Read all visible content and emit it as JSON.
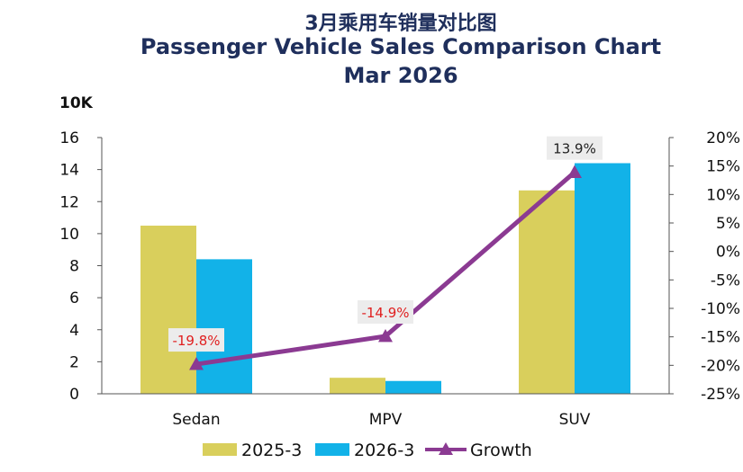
{
  "chart_data": {
    "type": "bar",
    "title_cn": "3月乘用车销量对比图",
    "title": "Passenger Vehicle Sales Comparison Chart",
    "subtitle": "Mar 2026",
    "y_unit": "10K",
    "categories": [
      "Sedan",
      "MPV",
      "SUV"
    ],
    "ylim": [
      0,
      16
    ],
    "yticks": [
      "0",
      "2",
      "4",
      "6",
      "8",
      "10",
      "12",
      "14",
      "16"
    ],
    "y2lim": [
      -25,
      20
    ],
    "y2ticks": [
      "-25%",
      "-20%",
      "-15%",
      "-10%",
      "-5%",
      "0%",
      "5%",
      "10%",
      "15%",
      "20%"
    ],
    "series": [
      {
        "name": "2025-3",
        "type": "bar",
        "color": "#d9cf5c",
        "values": [
          10.5,
          1.0,
          12.7
        ]
      },
      {
        "name": "2026-3",
        "type": "bar",
        "color": "#12b2e8",
        "values": [
          8.4,
          0.8,
          14.4
        ]
      },
      {
        "name": "Growth",
        "type": "line",
        "axis": "right",
        "color": "#8b3a92",
        "values": [
          -19.8,
          -14.9,
          13.9
        ],
        "labels": [
          "-19.8%",
          "-14.9%",
          "13.9%"
        ]
      }
    ],
    "label_colors": {
      "negative": "#e02020",
      "positive": "#222222"
    },
    "legend": "bottom"
  }
}
